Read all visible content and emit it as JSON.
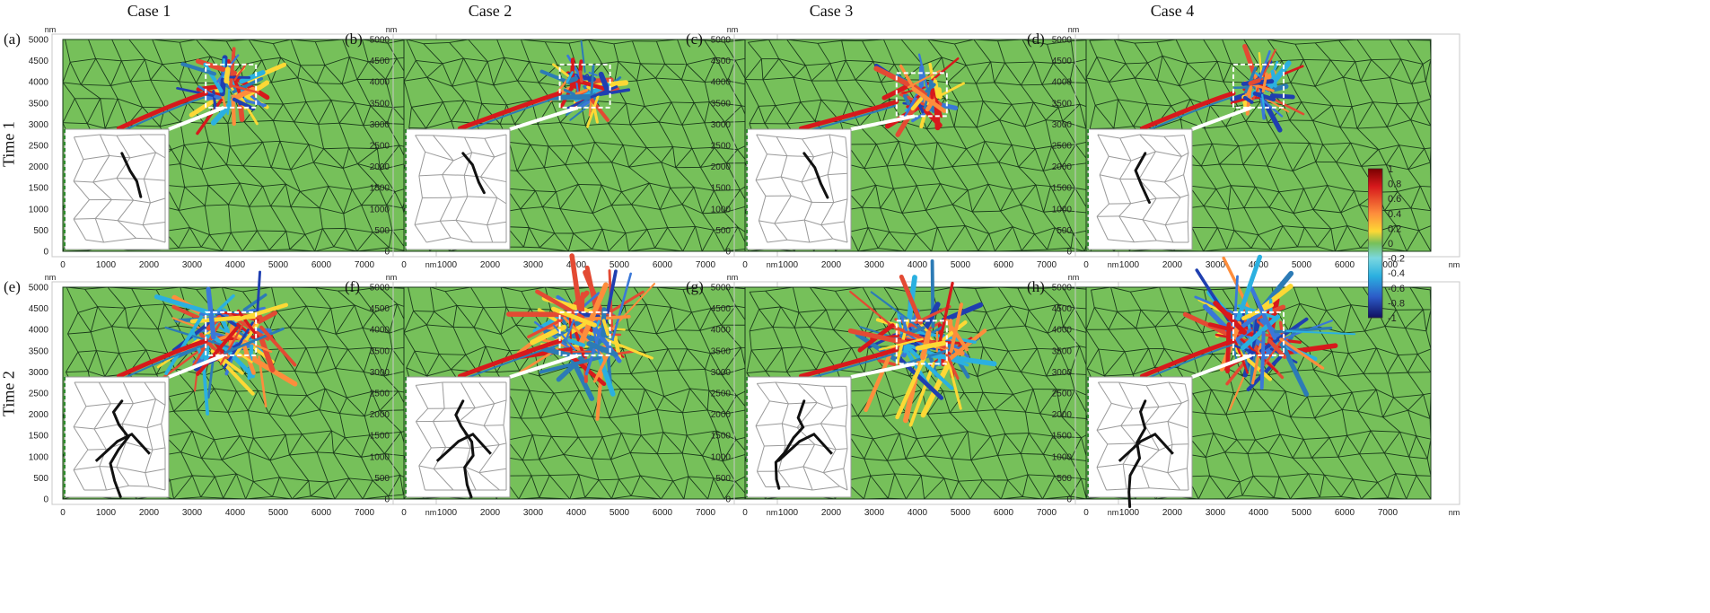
{
  "columns": [
    "Case 1",
    "Case 2",
    "Case 3",
    "Case 4"
  ],
  "rows": [
    "Time 1",
    "Time 2"
  ],
  "axis": {
    "unit": "nm",
    "x_ticks": [
      "0",
      "1000",
      "2000",
      "3000",
      "4000",
      "5000",
      "6000",
      "7000"
    ],
    "y_ticks": [
      "0",
      "500",
      "1000",
      "1500",
      "2000",
      "2500",
      "3000",
      "3500",
      "4000",
      "4500",
      "5000"
    ],
    "xlim": [
      0,
      8000
    ],
    "ylim": [
      0,
      5000
    ]
  },
  "colorbar": {
    "ticks": [
      "1",
      "0.8",
      "0.6",
      "0.4",
      "0.2",
      "0",
      "-0.2",
      "-0.4",
      "-0.6",
      "-0.8",
      "-1"
    ],
    "range": [
      -1,
      1
    ]
  },
  "colors": {
    "matrix": "#76c05a",
    "grain_boundary": "#1a3a1a",
    "highlight_box": "#ffffff",
    "inset_background": "#ffffff",
    "crack": "#111111"
  },
  "panels": [
    {
      "label": "(a)",
      "case": "Case 1",
      "time": "Time 1"
    },
    {
      "label": "(b)",
      "case": "Case 2",
      "time": "Time 1"
    },
    {
      "label": "(c)",
      "case": "Case 3",
      "time": "Time 1"
    },
    {
      "label": "(d)",
      "case": "Case 4",
      "time": "Time 1"
    },
    {
      "label": "(e)",
      "case": "Case 1",
      "time": "Time 2"
    },
    {
      "label": "(f)",
      "case": "Case 2",
      "time": "Time 2"
    },
    {
      "label": "(g)",
      "case": "Case 3",
      "time": "Time 2"
    },
    {
      "label": "(h)",
      "case": "Case 4",
      "time": "Time 2"
    }
  ]
}
